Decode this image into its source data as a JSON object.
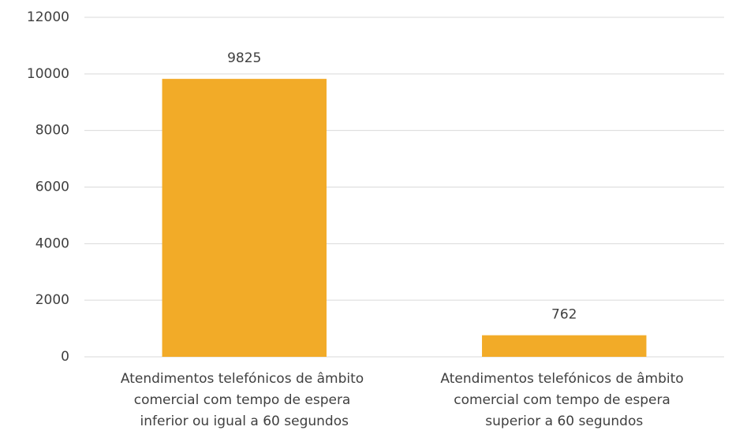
{
  "chart_data": {
    "type": "bar",
    "categories": [
      "Atendimentos telefónicos de âmbito comercial com tempo de espera inferior ou igual a 60 segundos",
      "Atendimentos telefónicos de âmbito comercial com tempo de espera superior a 60 segundos"
    ],
    "values": [
      9825,
      762
    ],
    "color": "#f2ab28",
    "ylim": [
      0,
      12000
    ],
    "yticks": [
      0,
      2000,
      4000,
      6000,
      8000,
      10000,
      12000
    ],
    "grid": true
  }
}
